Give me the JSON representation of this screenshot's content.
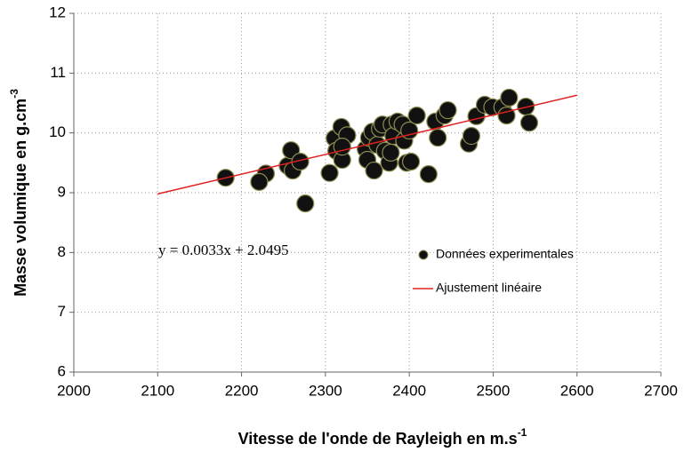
{
  "chart_data": {
    "type": "scatter",
    "xlabel": "Vitesse de l'onde de Rayleigh en m.s",
    "xlabel_sup": "-1",
    "ylabel": "Masse volumique en g.cm",
    "ylabel_sup": "-3",
    "annotation": "y = 0.0033x + 2.0495",
    "xlim": [
      2000,
      2700
    ],
    "xticks": [
      2000,
      2100,
      2200,
      2300,
      2400,
      2500,
      2600,
      2700
    ],
    "ylim": [
      6,
      12
    ],
    "yticks": [
      6,
      7,
      8,
      9,
      10,
      11,
      12
    ],
    "grid": true,
    "series": [
      {
        "name": "Données experimentales",
        "color": "#111111",
        "x": [
          2181,
          2229,
          2221,
          2255,
          2259,
          2261,
          2270,
          2276,
          2305,
          2311,
          2313,
          2319,
          2320,
          2326,
          2320,
          2348,
          2350,
          2352,
          2356,
          2358,
          2362,
          2365,
          2368,
          2371,
          2376,
          2378,
          2379,
          2381,
          2386,
          2392,
          2394,
          2397,
          2400,
          2402,
          2409,
          2423,
          2431,
          2434,
          2442,
          2446,
          2471,
          2474,
          2480,
          2490,
          2499,
          2511,
          2516,
          2519,
          2539,
          2543
        ],
        "values": [
          9.25,
          9.32,
          9.18,
          9.45,
          9.71,
          9.37,
          9.52,
          8.82,
          9.33,
          9.91,
          9.7,
          10.1,
          9.55,
          9.96,
          9.77,
          9.73,
          9.55,
          9.92,
          10.02,
          9.37,
          9.8,
          10.07,
          10.14,
          9.7,
          9.5,
          9.67,
          10.14,
          9.95,
          10.19,
          10.14,
          9.87,
          9.5,
          10.04,
          9.52,
          10.29,
          9.31,
          10.19,
          9.92,
          10.29,
          10.38,
          9.82,
          9.95,
          10.28,
          10.47,
          10.43,
          10.43,
          10.29,
          10.59,
          10.44,
          10.17
        ]
      },
      {
        "name": "Ajustement linéaire",
        "color": "#e02020",
        "type": "line",
        "x": [
          2100,
          2600
        ],
        "values": [
          8.98,
          10.63
        ]
      }
    ]
  }
}
